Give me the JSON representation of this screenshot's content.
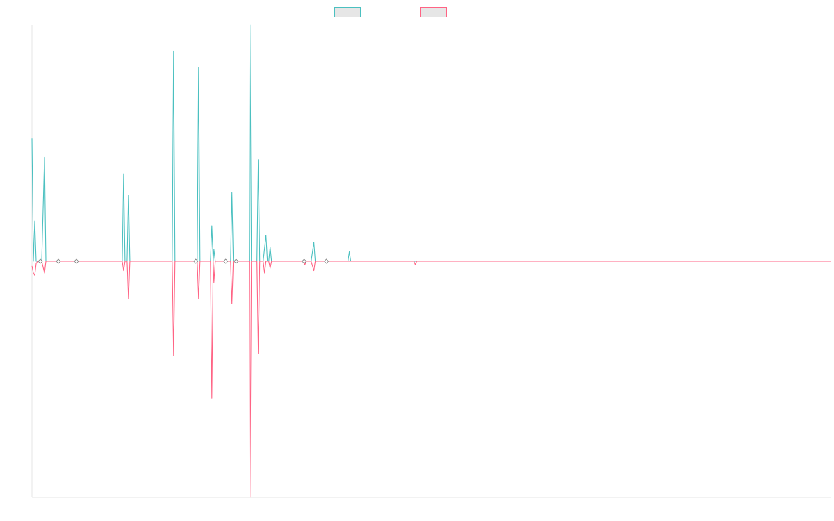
{
  "chart_data": {
    "type": "line",
    "title": "",
    "xlabel": "",
    "ylabel": "",
    "grid": false,
    "legend_placement": "top-center",
    "x_range": [
      0,
      1150
    ],
    "y_range": [
      -1,
      1
    ],
    "series": [
      {
        "color": "#4bc0c0",
        "points": [
          [
            0,
            0.52
          ],
          [
            2,
            0.0
          ],
          [
            4,
            0.17
          ],
          [
            6,
            0.0
          ],
          [
            14,
            0.0
          ],
          [
            18,
            0.44
          ],
          [
            20,
            0.0
          ],
          [
            130,
            0.0
          ],
          [
            132,
            0.37
          ],
          [
            134,
            0.0
          ],
          [
            137,
            0.0
          ],
          [
            139,
            0.28
          ],
          [
            141,
            0.0
          ],
          [
            202,
            0.0
          ],
          [
            204,
            0.89
          ],
          [
            206,
            0.0
          ],
          [
            238,
            0.0
          ],
          [
            240,
            0.82
          ],
          [
            242,
            0.0
          ],
          [
            257,
            0.0
          ],
          [
            259,
            0.15
          ],
          [
            261,
            0.0
          ],
          [
            262,
            0.05
          ],
          [
            264,
            0.0
          ],
          [
            286,
            0.0
          ],
          [
            288,
            0.29
          ],
          [
            290,
            0.0
          ],
          [
            313,
            0.0
          ],
          [
            314,
            1.0
          ],
          [
            316,
            0.0
          ],
          [
            324,
            0.0
          ],
          [
            326,
            0.43
          ],
          [
            328,
            0.0
          ],
          [
            333,
            0.0
          ],
          [
            337,
            0.11
          ],
          [
            339,
            0.0
          ],
          [
            341,
            0.0
          ],
          [
            343,
            0.06
          ],
          [
            345,
            0.0
          ],
          [
            402,
            0.0
          ],
          [
            406,
            0.08
          ],
          [
            408,
            0.0
          ],
          [
            455,
            0.0
          ],
          [
            457,
            0.04
          ],
          [
            459,
            0.0
          ],
          [
            1150,
            0.0
          ]
        ]
      },
      {
        "color": "#ff6384",
        "points": [
          [
            0,
            -0.02
          ],
          [
            2,
            -0.05
          ],
          [
            4,
            -0.06
          ],
          [
            6,
            -0.01
          ],
          [
            8,
            0.0
          ],
          [
            14,
            0.0
          ],
          [
            18,
            -0.05
          ],
          [
            20,
            0.0
          ],
          [
            130,
            0.0
          ],
          [
            132,
            -0.04
          ],
          [
            134,
            0.0
          ],
          [
            137,
            0.0
          ],
          [
            139,
            -0.16
          ],
          [
            141,
            0.0
          ],
          [
            202,
            0.0
          ],
          [
            204,
            -0.4
          ],
          [
            206,
            0.0
          ],
          [
            238,
            0.0
          ],
          [
            240,
            -0.16
          ],
          [
            242,
            0.0
          ],
          [
            257,
            0.0
          ],
          [
            259,
            -0.58
          ],
          [
            261,
            0.0
          ],
          [
            262,
            -0.09
          ],
          [
            264,
            0.0
          ],
          [
            286,
            0.0
          ],
          [
            288,
            -0.18
          ],
          [
            290,
            0.0
          ],
          [
            313,
            0.0
          ],
          [
            314,
            -1.0
          ],
          [
            316,
            0.0
          ],
          [
            324,
            0.0
          ],
          [
            326,
            -0.39
          ],
          [
            328,
            0.0
          ],
          [
            333,
            0.0
          ],
          [
            335,
            -0.05
          ],
          [
            337,
            0.0
          ],
          [
            341,
            0.0
          ],
          [
            343,
            -0.03
          ],
          [
            345,
            0.0
          ],
          [
            391,
            0.0
          ],
          [
            393,
            -0.015
          ],
          [
            395,
            0.0
          ],
          [
            402,
            0.0
          ],
          [
            406,
            -0.04
          ],
          [
            408,
            0.0
          ],
          [
            550,
            0.0
          ],
          [
            552,
            -0.015
          ],
          [
            554,
            0.0
          ],
          [
            1150,
            0.0
          ]
        ]
      }
    ]
  }
}
